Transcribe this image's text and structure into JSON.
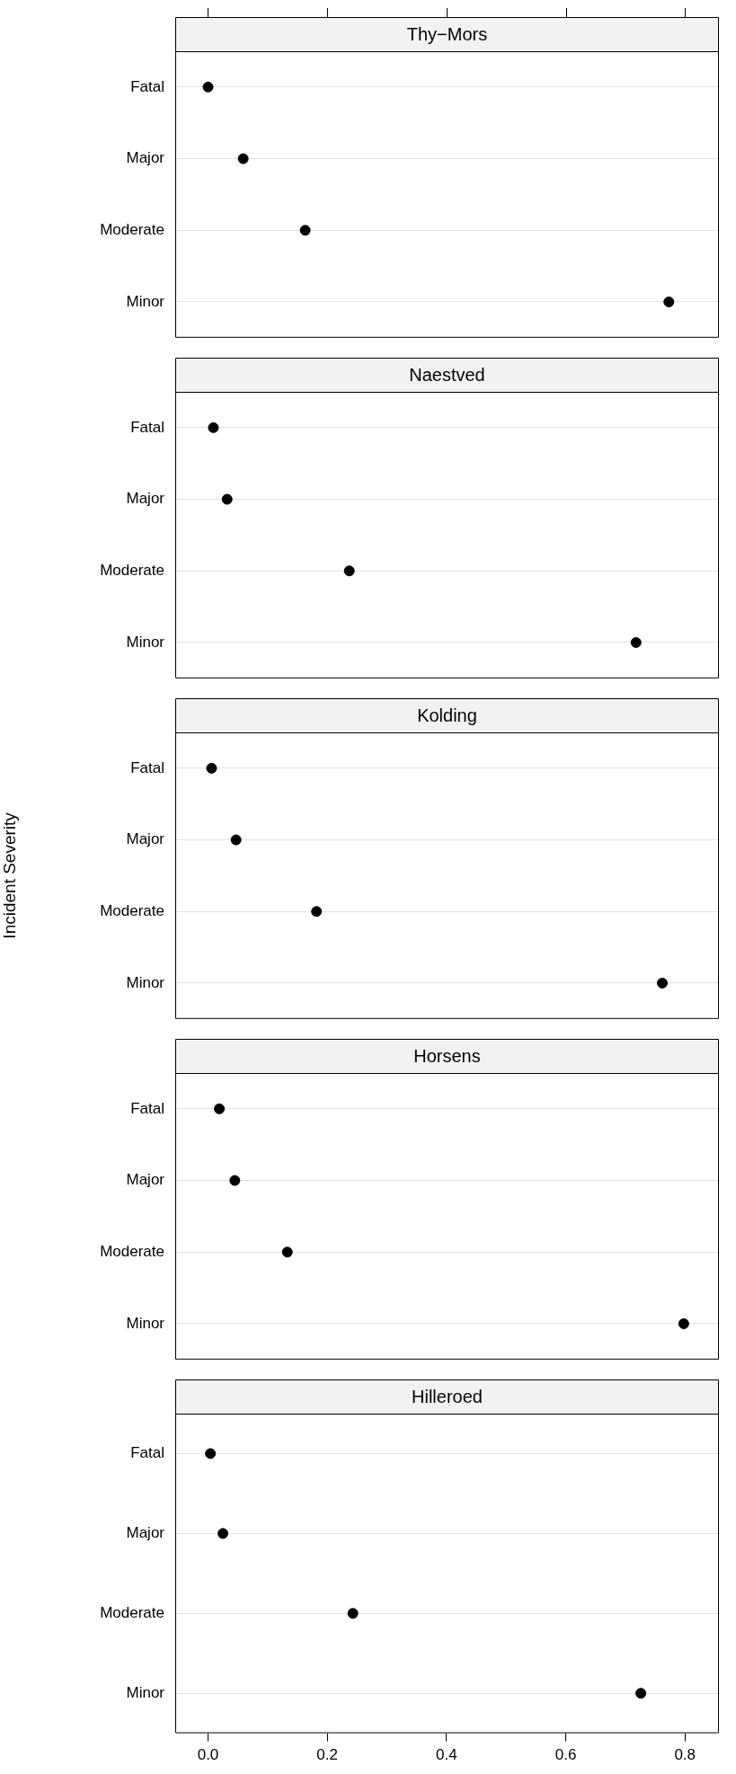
{
  "chart_data": [
    {
      "type": "scatter",
      "orientation": "horizontal",
      "title": "Thy−Mors",
      "categories": [
        "Fatal",
        "Major",
        "Moderate",
        "Minor"
      ],
      "values": [
        0.0,
        0.059,
        0.163,
        0.773
      ],
      "color": "#000000",
      "xlim": [
        -0.055,
        0.857
      ],
      "xticks": [
        {
          "value": 0,
          "label": null
        },
        {
          "value": 0.2,
          "label": null
        },
        {
          "value": 0.4,
          "label": null
        },
        {
          "value": 0.6,
          "label": null
        },
        {
          "value": 0.8,
          "label": null
        }
      ],
      "grid": "y",
      "marker": "circle",
      "tick_labels": "y"
    },
    {
      "type": "scatter",
      "orientation": "horizontal",
      "title": "Naestved",
      "categories": [
        "Fatal",
        "Major",
        "Moderate",
        "Minor"
      ],
      "values": [
        0.009,
        0.032,
        0.237,
        0.718
      ],
      "color": "#000000",
      "xlim": [
        -0.055,
        0.857
      ],
      "grid": "y",
      "marker": "circle",
      "tick_labels": "y"
    },
    {
      "type": "scatter",
      "orientation": "horizontal",
      "title": "Kolding",
      "ylabel": "Incident Severity",
      "categories": [
        "Fatal",
        "Major",
        "Moderate",
        "Minor"
      ],
      "values": [
        0.006,
        0.047,
        0.182,
        0.762
      ],
      "color": "#000000",
      "xlim": [
        -0.055,
        0.857
      ],
      "grid": "y",
      "marker": "circle",
      "tick_labels": "y"
    },
    {
      "type": "scatter",
      "orientation": "horizontal",
      "title": "Horsens",
      "categories": [
        "Fatal",
        "Major",
        "Moderate",
        "Minor"
      ],
      "values": [
        0.019,
        0.045,
        0.133,
        0.798
      ],
      "color": "#000000",
      "xlim": [
        -0.055,
        0.857
      ],
      "grid": "y",
      "marker": "circle",
      "tick_labels": "y"
    },
    {
      "type": "scatter",
      "orientation": "horizontal",
      "title": "Hilleroed",
      "categories": [
        "Fatal",
        "Major",
        "Moderate",
        "Minor"
      ],
      "values": [
        0.004,
        0.025,
        0.243,
        0.726
      ],
      "color": "#000000",
      "xlim": [
        -0.055,
        0.857
      ],
      "xticks": [
        {
          "value": 0,
          "label": "0.0"
        },
        {
          "value": 0.2,
          "label": "0.2"
        },
        {
          "value": 0.4,
          "label": "0.4"
        },
        {
          "value": 0.6,
          "label": "0.6"
        },
        {
          "value": 0.8,
          "label": "0.8"
        }
      ],
      "grid": "y",
      "marker": "circle"
    }
  ]
}
